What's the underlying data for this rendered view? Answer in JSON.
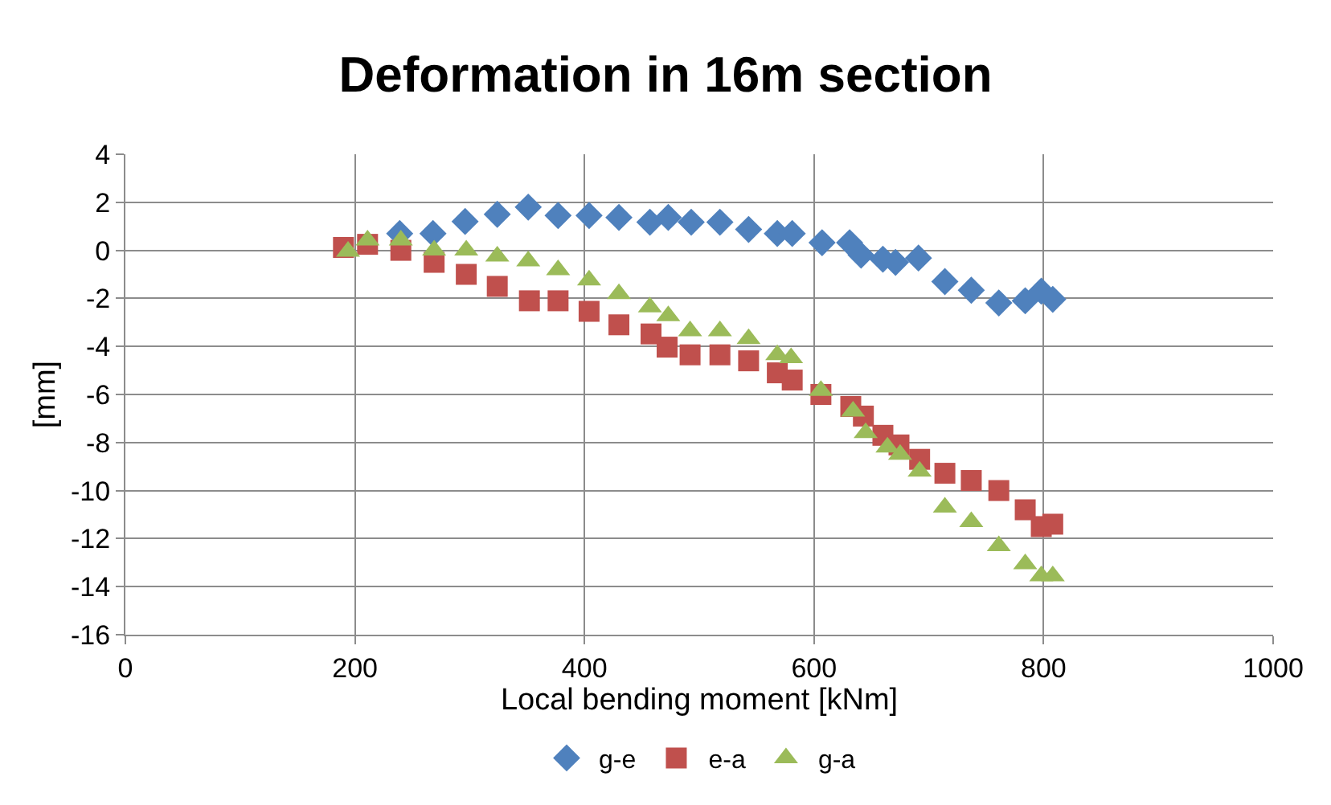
{
  "chart_data": {
    "type": "scatter",
    "title": "Deformation in 16m section",
    "xlabel": "Local bending moment [kNm]",
    "ylabel": "[mm]",
    "xlim": [
      0,
      1000
    ],
    "xticks": [
      0,
      200,
      400,
      600,
      800,
      1000
    ],
    "ylim": [
      -16,
      4
    ],
    "yticks": [
      -16,
      -14,
      -12,
      -10,
      -8,
      -6,
      -4,
      -2,
      0,
      2,
      4
    ],
    "grid": true,
    "legend": "bottom",
    "series": [
      {
        "name": "g-e",
        "color": "#4f81bd",
        "marker": "diamond",
        "x": [
          239,
          268,
          296,
          324,
          351,
          377,
          404,
          430,
          457,
          473,
          493,
          518,
          543,
          568,
          581,
          607,
          631,
          641,
          660,
          671,
          691,
          714,
          737,
          761,
          784,
          798,
          808
        ],
        "values": [
          0.7,
          0.7,
          1.2,
          1.5,
          1.8,
          1.45,
          1.45,
          1.37,
          1.17,
          1.37,
          1.17,
          1.17,
          0.87,
          0.7,
          0.7,
          0.32,
          0.32,
          -0.2,
          -0.37,
          -0.5,
          -0.32,
          -1.3,
          -1.66,
          -2.19,
          -2.1,
          -1.7,
          -2.04
        ]
      },
      {
        "name": "e-a",
        "color": "#c0504d",
        "marker": "square",
        "x": [
          190,
          211,
          240,
          269,
          297,
          324,
          352,
          377,
          404,
          430,
          458,
          472,
          492,
          518,
          543,
          568,
          581,
          606,
          632,
          643,
          660,
          674,
          692,
          714,
          737,
          761,
          784,
          798,
          808
        ],
        "values": [
          0.12,
          0.25,
          0,
          -0.5,
          -1.0,
          -1.5,
          -2.1,
          -2.1,
          -2.54,
          -3.1,
          -3.48,
          -4.03,
          -4.35,
          -4.35,
          -4.6,
          -5.1,
          -5.4,
          -6.0,
          -6.5,
          -6.9,
          -7.7,
          -8.1,
          -8.7,
          -9.28,
          -9.58,
          -10.0,
          -10.8,
          -11.5,
          -11.4
        ]
      },
      {
        "name": "g-a",
        "color": "#9bbb59",
        "marker": "triangle",
        "x": [
          194,
          211,
          240,
          269,
          297,
          324,
          351,
          377,
          404,
          430,
          457,
          473,
          492,
          518,
          543,
          568,
          580,
          606,
          634,
          645,
          664,
          675,
          692,
          714,
          737,
          761,
          784,
          798,
          808
        ],
        "values": [
          -0.05,
          0.42,
          0.42,
          0,
          0,
          -0.25,
          -0.45,
          -0.82,
          -1.24,
          -1.81,
          -2.36,
          -2.73,
          -3.36,
          -3.36,
          -3.68,
          -4.35,
          -4.48,
          -5.84,
          -6.7,
          -7.6,
          -8.2,
          -8.5,
          -9.2,
          -10.7,
          -11.3,
          -12.3,
          -13.06,
          -13.56,
          -13.56
        ]
      }
    ]
  }
}
